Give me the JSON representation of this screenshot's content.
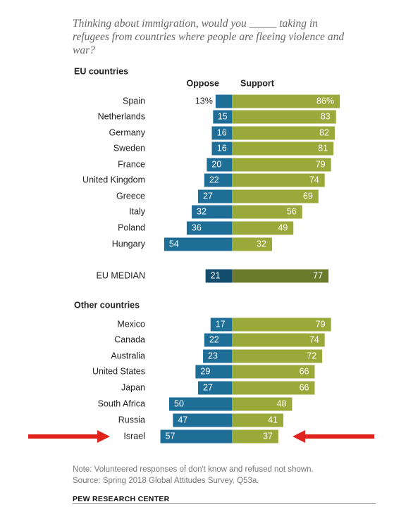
{
  "title": "Thinking about immigration, would you _____ taking in refugees from countries where people are fleeing violence and war?",
  "legend": {
    "oppose": "Oppose",
    "support": "Support"
  },
  "note": "Note: Volunteered responses of don't know and refused not shown.",
  "source": "Source: Spring 2018 Global Attitudes Survey. Q53a.",
  "brand": "PEW RESEARCH CENTER",
  "colors": {
    "oppose": "#1f6e98",
    "support": "#9aaa3a",
    "median_oppose": "#124d6e",
    "median_support": "#6b7a2c",
    "arrow": "#e0231c"
  },
  "chart_data": {
    "type": "bar",
    "orientation": "horizontal-diverging",
    "series_names": [
      "Oppose",
      "Support"
    ],
    "unit": "%",
    "groups": [
      {
        "label": "EU countries",
        "rows": [
          {
            "category": "Spain",
            "oppose": 13,
            "support": 86,
            "oppose_label": "13%",
            "support_label": "86%"
          },
          {
            "category": "Netherlands",
            "oppose": 15,
            "support": 83
          },
          {
            "category": "Germany",
            "oppose": 16,
            "support": 82
          },
          {
            "category": "Sweden",
            "oppose": 16,
            "support": 81
          },
          {
            "category": "France",
            "oppose": 20,
            "support": 79
          },
          {
            "category": "United Kingdom",
            "oppose": 22,
            "support": 74
          },
          {
            "category": "Greece",
            "oppose": 27,
            "support": 69
          },
          {
            "category": "Italy",
            "oppose": 32,
            "support": 56
          },
          {
            "category": "Poland",
            "oppose": 36,
            "support": 49
          },
          {
            "category": "Hungary",
            "oppose": 54,
            "support": 32
          }
        ]
      },
      {
        "label": "",
        "median": true,
        "rows": [
          {
            "category": "EU MEDIAN",
            "oppose": 21,
            "support": 77
          }
        ]
      },
      {
        "label": "Other countries",
        "rows": [
          {
            "category": "Mexico",
            "oppose": 17,
            "support": 79
          },
          {
            "category": "Canada",
            "oppose": 22,
            "support": 74
          },
          {
            "category": "Australia",
            "oppose": 23,
            "support": 72
          },
          {
            "category": "United States",
            "oppose": 29,
            "support": 66
          },
          {
            "category": "Japan",
            "oppose": 27,
            "support": 66
          },
          {
            "category": "South Africa",
            "oppose": 50,
            "support": 48
          },
          {
            "category": "Russia",
            "oppose": 47,
            "support": 41
          },
          {
            "category": "Israel",
            "oppose": 57,
            "support": 37,
            "highlighted": true
          }
        ]
      }
    ]
  }
}
